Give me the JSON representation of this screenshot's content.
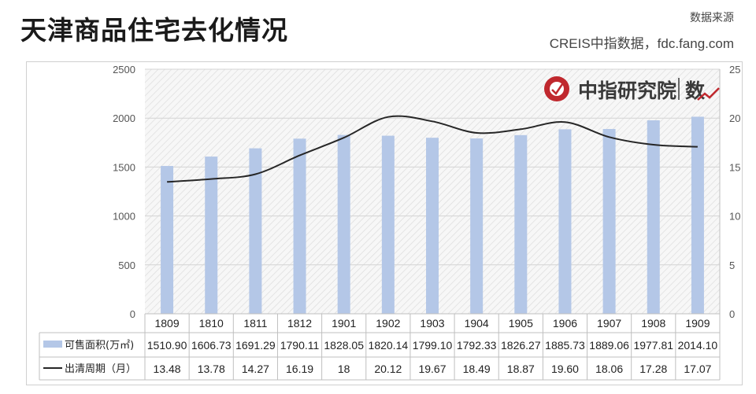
{
  "header": {
    "title": "天津商品住宅去化情况",
    "source_label": "数据来源",
    "source_text": "CREIS中指数据，fdc.fang.com"
  },
  "watermark": {
    "text": "中指研究院",
    "suffix": "数"
  },
  "chart_data": {
    "type": "bar",
    "categories": [
      "1809",
      "1810",
      "1811",
      "1812",
      "1901",
      "1902",
      "1903",
      "1904",
      "1905",
      "1906",
      "1907",
      "1908",
      "1909"
    ],
    "series": [
      {
        "name": "可售面积(万㎡)",
        "type": "bar",
        "axis": "left",
        "color": "#b4c7e7",
        "values": [
          1510.9,
          1606.73,
          1691.29,
          1790.11,
          1828.05,
          1820.14,
          1799.1,
          1792.33,
          1826.27,
          1885.73,
          1889.06,
          1977.81,
          2014.1
        ],
        "labels": [
          "1510.90",
          "1606.73",
          "1691.29",
          "1790.11",
          "1828.05",
          "1820.14",
          "1799.10",
          "1792.33",
          "1826.27",
          "1885.73",
          "1889.06",
          "1977.81",
          "2014.10"
        ]
      },
      {
        "name": "出清周期（月）",
        "type": "line",
        "axis": "right",
        "color": "#262626",
        "values": [
          13.48,
          13.78,
          14.27,
          16.19,
          18,
          20.12,
          19.67,
          18.49,
          18.87,
          19.6,
          18.06,
          17.28,
          17.07
        ],
        "labels": [
          "13.48",
          "13.78",
          "14.27",
          "16.19",
          "18",
          "20.12",
          "19.67",
          "18.49",
          "18.87",
          "19.60",
          "18.06",
          "17.28",
          "17.07"
        ]
      }
    ],
    "y_left": {
      "min": 0,
      "max": 2500,
      "ticks": [
        "0",
        "500",
        "1000",
        "1500",
        "2000",
        "2500"
      ]
    },
    "y_right": {
      "min": 0,
      "max": 25,
      "ticks": [
        "0",
        "5",
        "10",
        "15",
        "20",
        "25"
      ]
    },
    "grid": true,
    "data_table": true
  }
}
